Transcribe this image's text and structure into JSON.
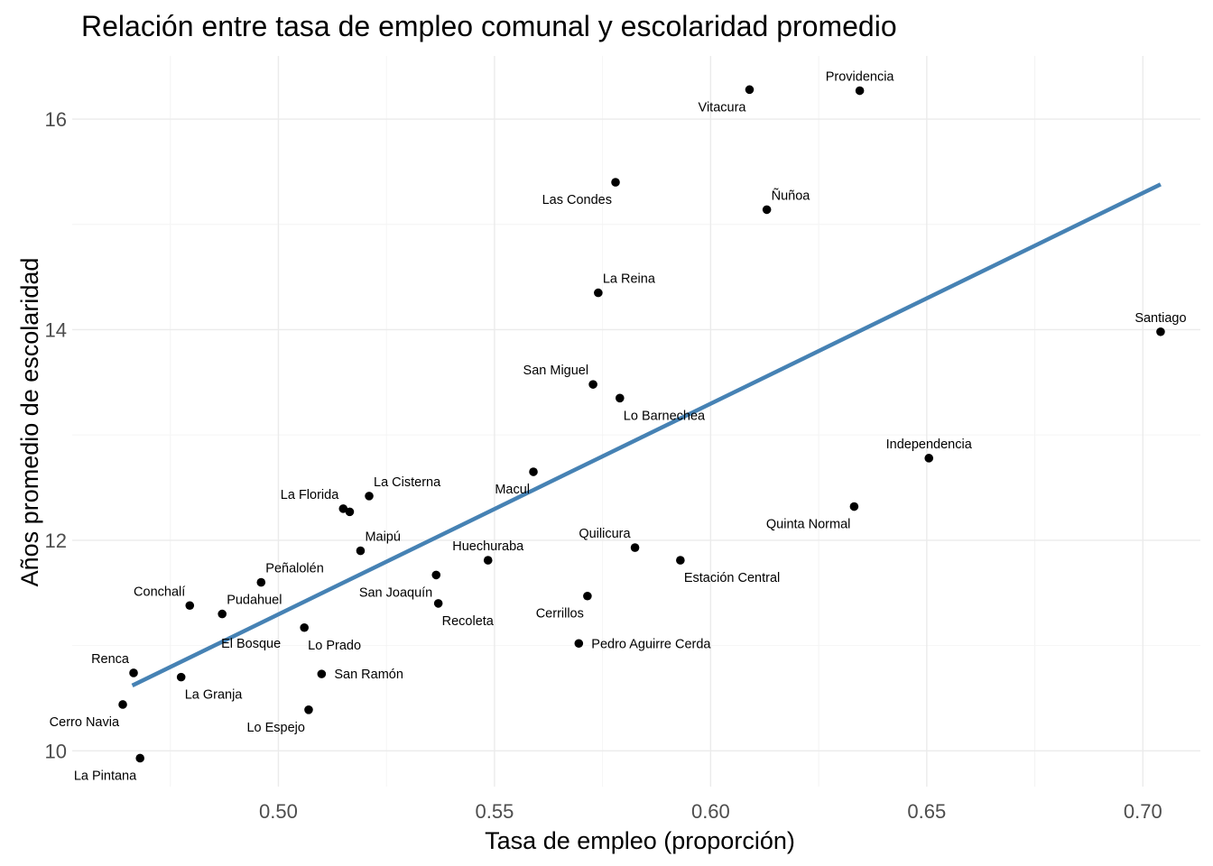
{
  "chart_data": {
    "type": "scatter",
    "title": "Relación entre tasa de empleo comunal y escolaridad promedio",
    "xlabel": "Tasa de empleo (proporción)",
    "ylabel": "Años promedio de escolaridad",
    "xlim": [
      0.4523,
      0.7133
    ],
    "ylim": [
      9.66,
      16.6
    ],
    "x_ticks": [
      0.5,
      0.55,
      0.6,
      0.65,
      0.7
    ],
    "x_tick_labels": [
      "0.50",
      "0.55",
      "0.60",
      "0.65",
      "0.70"
    ],
    "y_ticks": [
      10,
      12,
      14,
      16
    ],
    "y_tick_labels": [
      "10",
      "12",
      "14",
      "16"
    ],
    "grid": true,
    "point_color": "#000000",
    "trend_color": "#4682B4",
    "trendline": {
      "x": [
        0.4662,
        0.7041
      ],
      "y": [
        10.62,
        15.38
      ]
    },
    "points": [
      {
        "name": "Providencia",
        "x": 0.6345,
        "y": 16.27,
        "label_pos": "above"
      },
      {
        "name": "Vitacura",
        "x": 0.609,
        "y": 16.28,
        "label_pos": "below-left"
      },
      {
        "name": "Las Condes",
        "x": 0.578,
        "y": 15.4,
        "label_pos": "below-left"
      },
      {
        "name": "Ñuñoa",
        "x": 0.613,
        "y": 15.14,
        "label_pos": "above-right"
      },
      {
        "name": "La Reina",
        "x": 0.574,
        "y": 14.35,
        "label_pos": "above-right"
      },
      {
        "name": "Santiago",
        "x": 0.7041,
        "y": 13.98,
        "label_pos": "above"
      },
      {
        "name": "San Miguel",
        "x": 0.5728,
        "y": 13.48,
        "label_pos": "above-left"
      },
      {
        "name": "Lo Barnechea",
        "x": 0.579,
        "y": 13.35,
        "label_pos": "below-right"
      },
      {
        "name": "Independencia",
        "x": 0.6505,
        "y": 12.78,
        "label_pos": "above"
      },
      {
        "name": "Macul",
        "x": 0.559,
        "y": 12.65,
        "label_pos": "below-left"
      },
      {
        "name": "La Cisterna",
        "x": 0.521,
        "y": 12.42,
        "label_pos": "above-right"
      },
      {
        "name": "La Florida",
        "x": 0.515,
        "y": 12.3,
        "label_pos": "above-left"
      },
      {
        "name": "",
        "x": 0.5165,
        "y": 12.27,
        "label_pos": "none"
      },
      {
        "name": "Quinta Normal",
        "x": 0.6332,
        "y": 12.32,
        "label_pos": "below-left"
      },
      {
        "name": "Maipú",
        "x": 0.519,
        "y": 11.9,
        "label_pos": "above-right"
      },
      {
        "name": "Quilicura",
        "x": 0.5825,
        "y": 11.93,
        "label_pos": "above-left"
      },
      {
        "name": "Huechuraba",
        "x": 0.5485,
        "y": 11.81,
        "label_pos": "above"
      },
      {
        "name": "Estación Central",
        "x": 0.593,
        "y": 11.81,
        "label_pos": "below-right"
      },
      {
        "name": "Peñalolén",
        "x": 0.496,
        "y": 11.6,
        "label_pos": "above-right"
      },
      {
        "name": "San Joaquín",
        "x": 0.5365,
        "y": 11.67,
        "label_pos": "below-left"
      },
      {
        "name": "Conchalí",
        "x": 0.4795,
        "y": 11.38,
        "label_pos": "above-left"
      },
      {
        "name": "Recoleta",
        "x": 0.537,
        "y": 11.4,
        "label_pos": "below-right"
      },
      {
        "name": "Cerrillos",
        "x": 0.5715,
        "y": 11.47,
        "label_pos": "below-left"
      },
      {
        "name": "Pudahuel",
        "x": 0.487,
        "y": 11.3,
        "label_pos": "above-right"
      },
      {
        "name": "El Bosque",
        "x": 0.506,
        "y": 11.17,
        "label_pos": "left"
      },
      {
        "name": "Lo Prado",
        "x": 0.506,
        "y": 11.17,
        "label_pos": "below-right"
      },
      {
        "name": "Pedro Aguirre Cerda",
        "x": 0.5695,
        "y": 11.02,
        "label_pos": "right"
      },
      {
        "name": "Renca",
        "x": 0.4665,
        "y": 10.74,
        "label_pos": "above-left"
      },
      {
        "name": "San Ramón",
        "x": 0.51,
        "y": 10.73,
        "label_pos": "right"
      },
      {
        "name": "La Granja",
        "x": 0.4775,
        "y": 10.7,
        "label_pos": "below-right"
      },
      {
        "name": "Cerro Navia",
        "x": 0.464,
        "y": 10.44,
        "label_pos": "below-left"
      },
      {
        "name": "Lo Espejo",
        "x": 0.507,
        "y": 10.39,
        "label_pos": "below-left"
      },
      {
        "name": "La Pintana",
        "x": 0.468,
        "y": 9.93,
        "label_pos": "below-left"
      }
    ]
  }
}
